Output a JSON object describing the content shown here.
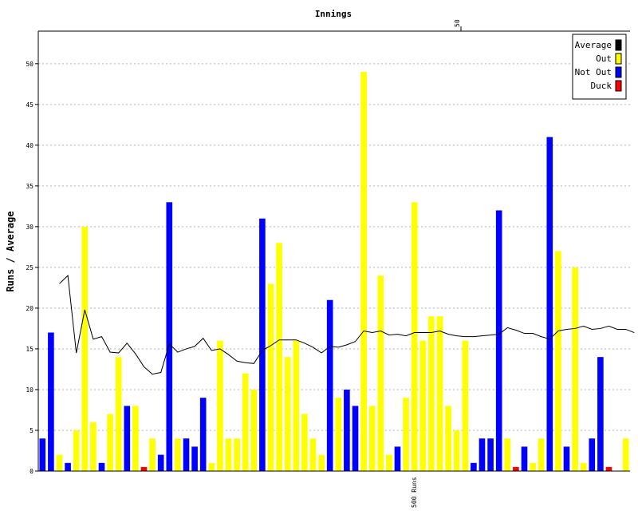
{
  "chart_data": {
    "type": "bar",
    "title": "Innings",
    "ylabel": "Runs / Average",
    "ylim": [
      0,
      54
    ],
    "yticks": [
      0,
      5,
      10,
      15,
      20,
      25,
      30,
      35,
      40,
      45,
      50
    ],
    "grid": true,
    "legend_position": "top-right",
    "top_marker_label": "50",
    "bottom_marker_label": "500 Runs",
    "innings": [
      {
        "runs": 4,
        "type": "Not Out"
      },
      {
        "runs": 17,
        "type": "Not Out"
      },
      {
        "runs": 2,
        "type": "Out"
      },
      {
        "runs": 1,
        "type": "Not Out"
      },
      {
        "runs": 5,
        "type": "Out"
      },
      {
        "runs": 30,
        "type": "Out"
      },
      {
        "runs": 6,
        "type": "Out"
      },
      {
        "runs": 1,
        "type": "Not Out"
      },
      {
        "runs": 7,
        "type": "Out"
      },
      {
        "runs": 14,
        "type": "Out"
      },
      {
        "runs": 8,
        "type": "Not Out"
      },
      {
        "runs": 8,
        "type": "Out"
      },
      {
        "runs": 0.5,
        "type": "Duck"
      },
      {
        "runs": 4,
        "type": "Out"
      },
      {
        "runs": 2,
        "type": "Not Out"
      },
      {
        "runs": 33,
        "type": "Not Out"
      },
      {
        "runs": 4,
        "type": "Out"
      },
      {
        "runs": 4,
        "type": "Not Out"
      },
      {
        "runs": 3,
        "type": "Not Out"
      },
      {
        "runs": 9,
        "type": "Not Out"
      },
      {
        "runs": 1,
        "type": "Out"
      },
      {
        "runs": 16,
        "type": "Out"
      },
      {
        "runs": 4,
        "type": "Out"
      },
      {
        "runs": 4,
        "type": "Out"
      },
      {
        "runs": 12,
        "type": "Out"
      },
      {
        "runs": 10,
        "type": "Out"
      },
      {
        "runs": 31,
        "type": "Not Out"
      },
      {
        "runs": 23,
        "type": "Out"
      },
      {
        "runs": 28,
        "type": "Out"
      },
      {
        "runs": 14,
        "type": "Out"
      },
      {
        "runs": 16,
        "type": "Out"
      },
      {
        "runs": 7,
        "type": "Out"
      },
      {
        "runs": 4,
        "type": "Out"
      },
      {
        "runs": 2,
        "type": "Out"
      },
      {
        "runs": 21,
        "type": "Not Out"
      },
      {
        "runs": 9,
        "type": "Out"
      },
      {
        "runs": 10,
        "type": "Not Out"
      },
      {
        "runs": 8,
        "type": "Not Out"
      },
      {
        "runs": 49,
        "type": "Out"
      },
      {
        "runs": 8,
        "type": "Out"
      },
      {
        "runs": 24,
        "type": "Out"
      },
      {
        "runs": 2,
        "type": "Out"
      },
      {
        "runs": 3,
        "type": "Not Out"
      },
      {
        "runs": 9,
        "type": "Out"
      },
      {
        "runs": 33,
        "type": "Out"
      },
      {
        "runs": 16,
        "type": "Out"
      },
      {
        "runs": 19,
        "type": "Out"
      },
      {
        "runs": 19,
        "type": "Out"
      },
      {
        "runs": 8,
        "type": "Out"
      },
      {
        "runs": 5,
        "type": "Out"
      },
      {
        "runs": 16,
        "type": "Out"
      },
      {
        "runs": 1,
        "type": "Not Out"
      },
      {
        "runs": 4,
        "type": "Not Out"
      },
      {
        "runs": 4,
        "type": "Not Out"
      },
      {
        "runs": 32,
        "type": "Not Out"
      },
      {
        "runs": 4,
        "type": "Out"
      },
      {
        "runs": 0.5,
        "type": "Duck"
      },
      {
        "runs": 3,
        "type": "Not Out"
      },
      {
        "runs": 1,
        "type": "Out"
      },
      {
        "runs": 4,
        "type": "Out"
      },
      {
        "runs": 41,
        "type": "Not Out"
      },
      {
        "runs": 27,
        "type": "Out"
      },
      {
        "runs": 3,
        "type": "Not Out"
      },
      {
        "runs": 25,
        "type": "Out"
      },
      {
        "runs": 1,
        "type": "Out"
      },
      {
        "runs": 4,
        "type": "Not Out"
      },
      {
        "runs": 14,
        "type": "Not Out"
      },
      {
        "runs": 0.5,
        "type": "Duck"
      },
      {
        "runs": 0,
        "type": "Out"
      },
      {
        "runs": 4,
        "type": "Out"
      }
    ],
    "average_line": [
      23,
      24,
      14.5,
      19.8,
      16.2,
      16.5,
      14.6,
      14.5,
      15.7,
      14.4,
      12.8,
      11.9,
      12.1,
      15.6,
      14.6,
      15.0,
      15.3,
      16.3,
      14.8,
      15.0,
      14.3,
      13.5,
      13.3,
      13.2,
      14.8,
      15.4,
      16.1,
      16.1,
      16.1,
      15.7,
      15.2,
      14.5,
      15.3,
      15.2,
      15.5,
      15.9,
      17.2,
      17.0,
      17.2,
      16.7,
      16.8,
      16.6,
      17.0,
      17.0,
      17.0,
      17.2,
      16.8,
      16.6,
      16.5,
      16.5,
      16.6,
      16.7,
      16.8,
      17.6,
      17.3,
      16.9,
      16.9,
      16.5,
      16.2,
      17.2,
      17.4,
      17.5,
      17.8,
      17.4,
      17.5,
      17.8,
      17.4,
      17.4,
      17.0
    ],
    "legend": [
      {
        "label": "Average",
        "color": "#000000"
      },
      {
        "label": "Out",
        "color": "#ffff00"
      },
      {
        "label": "Not Out",
        "color": "#0000ff"
      },
      {
        "label": "Duck",
        "color": "#ff0000"
      }
    ],
    "colors": {
      "Out": "#ffff00",
      "Not Out": "#0000ff",
      "Duck": "#ff0000"
    }
  }
}
